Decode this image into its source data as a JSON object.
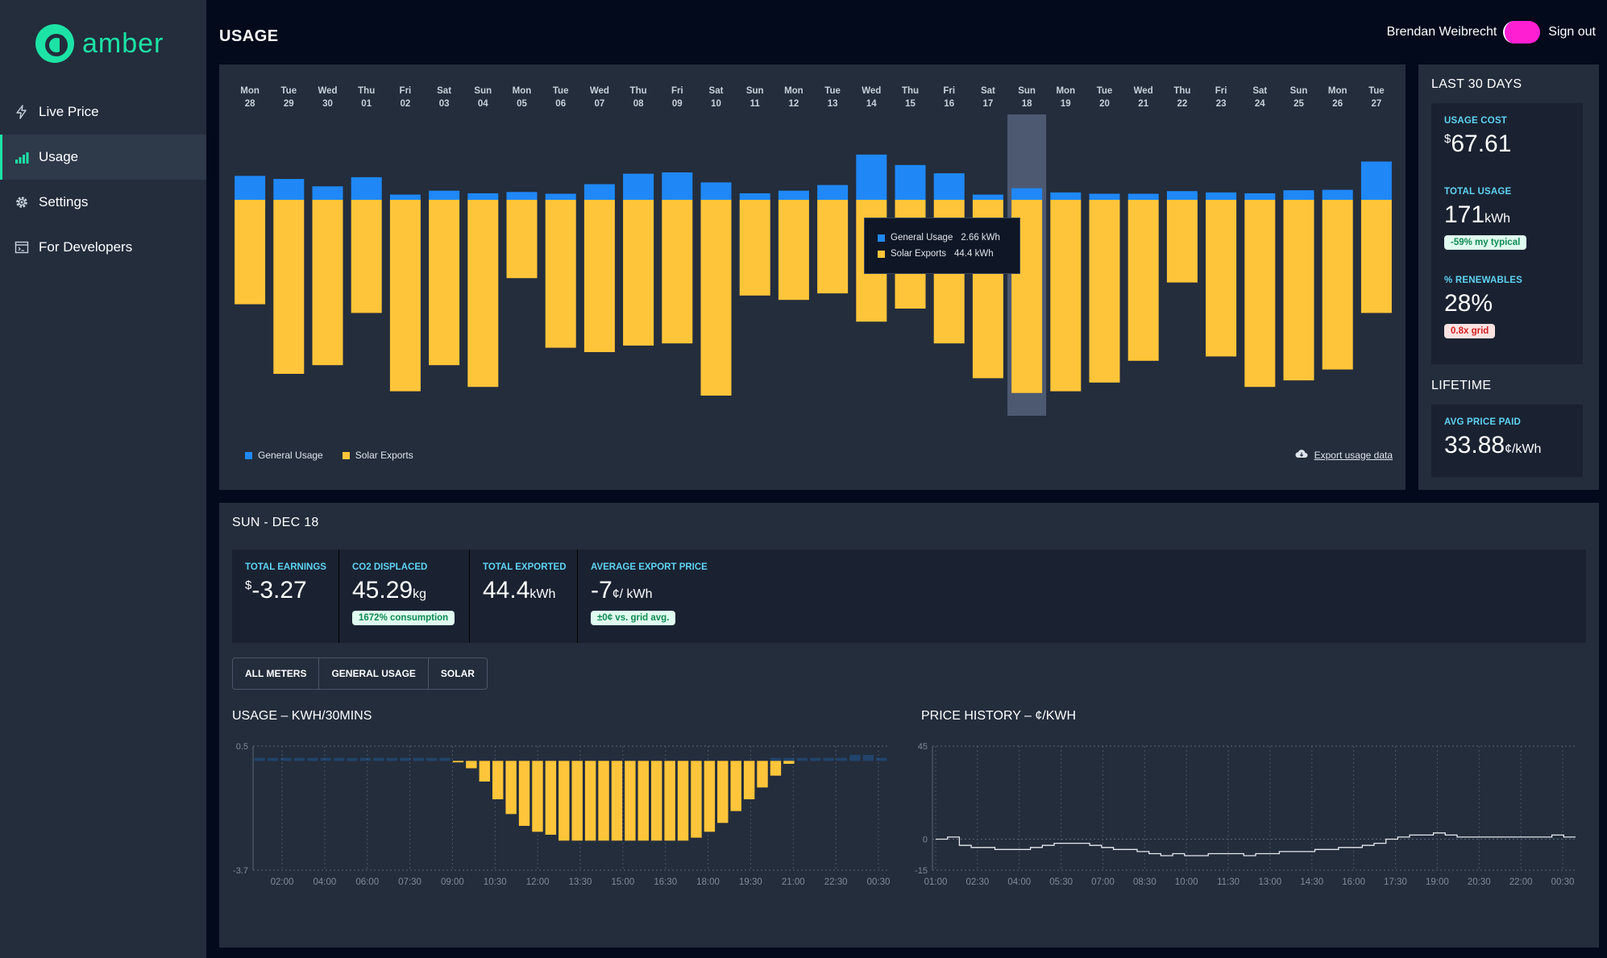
{
  "app": {
    "name": "amber"
  },
  "sidebar": {
    "items": [
      {
        "label": "Live Price",
        "icon": "lightning-icon"
      },
      {
        "label": "Usage",
        "icon": "bar-chart-icon",
        "active": true
      },
      {
        "label": "Settings",
        "icon": "gear-icon"
      },
      {
        "label": "For Developers",
        "icon": "code-window-icon"
      }
    ]
  },
  "header": {
    "title": "USAGE",
    "user_name": "Brendan Weibrecht",
    "sign_out": "Sign out"
  },
  "usage_chart": {
    "legend": {
      "general": "General Usage",
      "solar": "Solar Exports"
    },
    "export_link": "Export usage data",
    "tooltip": {
      "general_label": "General Usage",
      "general_value": "2.66 kWh",
      "solar_label": "Solar Exports",
      "solar_value": "44.4 kWh"
    }
  },
  "last30": {
    "heading": "LAST 30 DAYS",
    "usage_cost_label": "USAGE COST",
    "usage_cost_currency": "$",
    "usage_cost_value": "67.61",
    "total_usage_label": "TOTAL USAGE",
    "total_usage_value": "171",
    "total_usage_unit": "kWh",
    "total_usage_badge": "-59% my typical",
    "renewables_label": "% RENEWABLES",
    "renewables_value": "28%",
    "renewables_badge": "0.8x grid"
  },
  "lifetime": {
    "heading": "LIFETIME",
    "avg_price_label": "AVG PRICE PAID",
    "avg_price_value": "33.88",
    "avg_price_unit": "¢/kWh"
  },
  "day": {
    "heading": "SUN - DEC 18",
    "earnings_label": "TOTAL EARNINGS",
    "earnings_currency": "$",
    "earnings_value": "-3.27",
    "co2_label": "CO2 DISPLACED",
    "co2_value": "45.29",
    "co2_unit": "kg",
    "co2_badge": "1672% consumption",
    "exported_label": "TOTAL EXPORTED",
    "exported_value": "44.4",
    "exported_unit": "kWh",
    "export_price_label": "AVERAGE EXPORT PRICE",
    "export_price_value": "-7",
    "export_price_unit": "¢/ kWh",
    "export_price_badge": "±0¢ vs. grid avg."
  },
  "meter_tabs": [
    "ALL METERS",
    "GENERAL USAGE",
    "SOLAR"
  ],
  "colors": {
    "general": "#1f88f6",
    "solar": "#ffc53a",
    "accent": "#1ce3a5",
    "toggle": "#ff1fd3"
  },
  "chart_data": [
    {
      "type": "bar",
      "categories": [
        [
          "Mon",
          "28"
        ],
        [
          "Tue",
          "29"
        ],
        [
          "Wed",
          "30"
        ],
        [
          "Thu",
          "01"
        ],
        [
          "Fri",
          "02"
        ],
        [
          "Sat",
          "03"
        ],
        [
          "Sun",
          "04"
        ],
        [
          "Mon",
          "05"
        ],
        [
          "Tue",
          "06"
        ],
        [
          "Wed",
          "07"
        ],
        [
          "Thu",
          "08"
        ],
        [
          "Fri",
          "09"
        ],
        [
          "Sat",
          "10"
        ],
        [
          "Sun",
          "11"
        ],
        [
          "Mon",
          "12"
        ],
        [
          "Tue",
          "13"
        ],
        [
          "Wed",
          "14"
        ],
        [
          "Thu",
          "15"
        ],
        [
          "Fri",
          "16"
        ],
        [
          "Sat",
          "17"
        ],
        [
          "Sun",
          "18"
        ],
        [
          "Mon",
          "19"
        ],
        [
          "Tue",
          "20"
        ],
        [
          "Wed",
          "21"
        ],
        [
          "Thu",
          "22"
        ],
        [
          "Fri",
          "23"
        ],
        [
          "Sat",
          "24"
        ],
        [
          "Sun",
          "25"
        ],
        [
          "Mon",
          "26"
        ],
        [
          "Tue",
          "27"
        ]
      ],
      "series": [
        {
          "name": "General Usage",
          "values": [
            5.5,
            4.8,
            3.1,
            5.2,
            1.2,
            2.1,
            1.5,
            1.8,
            1.4,
            3.6,
            6.0,
            6.3,
            4.0,
            1.5,
            2.1,
            3.4,
            10.4,
            8.0,
            6.1,
            1.2,
            2.66,
            1.7,
            1.4,
            1.4,
            2.0,
            1.7,
            1.5,
            2.2,
            2.3,
            8.8
          ]
        },
        {
          "name": "Solar Exports",
          "values": [
            -24,
            -40,
            -38,
            -26,
            -44,
            -38,
            -43,
            -18,
            -34,
            -35,
            -33.5,
            -33,
            -45,
            -22,
            -23,
            -21.5,
            -28,
            -25,
            -33,
            -41,
            -44.4,
            -44,
            -42,
            -37,
            -19,
            -36,
            -43,
            -41.5,
            -39,
            -26
          ]
        }
      ],
      "highlight_index": 20
    },
    {
      "type": "bar",
      "title": "USAGE – KWH/30MINS",
      "x_ticks": [
        "02:00",
        "04:00",
        "06:00",
        "07:30",
        "09:00",
        "10:30",
        "12:00",
        "13:30",
        "15:00",
        "16:30",
        "18:00",
        "19:30",
        "21:00",
        "22:30",
        "00:30"
      ],
      "ylim": [
        -3.7,
        0.5
      ],
      "y_ticks": [
        "0.5",
        "-3.7"
      ],
      "x": [
        "00:30",
        "01:00",
        "01:30",
        "02:00",
        "02:30",
        "03:00",
        "03:30",
        "04:00",
        "04:30",
        "05:00",
        "05:30",
        "06:00",
        "06:30",
        "07:00",
        "07:30",
        "08:00",
        "08:30",
        "09:00",
        "09:30",
        "10:00",
        "10:30",
        "11:00",
        "11:30",
        "12:00",
        "12:30",
        "13:00",
        "13:30",
        "14:00",
        "14:30",
        "15:00",
        "15:30",
        "16:00",
        "16:30",
        "17:00",
        "17:30",
        "18:00",
        "18:30",
        "19:00",
        "19:30",
        "20:00",
        "20:30",
        "21:00",
        "21:30",
        "22:00",
        "22:30",
        "23:00",
        "23:30",
        "00:00"
      ],
      "series": [
        {
          "name": "General Usage",
          "values": [
            0.1,
            0.1,
            0.1,
            0.1,
            0.1,
            0.1,
            0.1,
            0.1,
            0.1,
            0.1,
            0.1,
            0.1,
            0.1,
            0.1,
            0.1,
            0,
            0,
            0,
            0,
            0,
            0,
            0,
            0,
            0,
            0,
            0,
            0,
            0,
            0,
            0,
            0,
            0,
            0,
            0,
            0,
            0,
            0,
            0,
            0,
            0.1,
            0.1,
            0.1,
            0.1,
            0.1,
            0.1,
            0.2,
            0.2,
            0.1
          ]
        },
        {
          "name": "Solar Exports",
          "values": [
            0,
            0,
            0,
            0,
            0,
            0,
            0,
            0,
            0,
            0,
            0,
            0,
            0,
            0,
            0,
            -0.05,
            -0.25,
            -0.7,
            -1.3,
            -1.8,
            -2.2,
            -2.4,
            -2.5,
            -2.7,
            -2.7,
            -2.7,
            -2.7,
            -2.7,
            -2.7,
            -2.7,
            -2.7,
            -2.7,
            -2.7,
            -2.6,
            -2.4,
            -2.1,
            -1.7,
            -1.3,
            -0.9,
            -0.5,
            -0.1,
            0,
            0,
            0,
            0,
            0,
            0,
            0
          ]
        }
      ]
    },
    {
      "type": "line",
      "title": "PRICE HISTORY – ¢/KWH",
      "x_ticks": [
        "01:00",
        "02:30",
        "04:00",
        "05:30",
        "07:00",
        "08:30",
        "10:00",
        "11:30",
        "13:00",
        "14:30",
        "16:00",
        "17:30",
        "19:00",
        "20:30",
        "22:00",
        "00:30"
      ],
      "ylim": [
        -15,
        45
      ],
      "y_ticks": [
        "45",
        "0",
        "-15"
      ],
      "values": [
        0,
        1,
        -3,
        -4,
        -4,
        -5,
        -5,
        -5,
        -4,
        -3,
        -2,
        -2,
        -2,
        -3,
        -4,
        -5,
        -5,
        -6,
        -7,
        -8,
        -7,
        -8,
        -8,
        -7,
        -7,
        -7,
        -8,
        -7,
        -7,
        -6,
        -6,
        -6,
        -5,
        -5,
        -4,
        -4,
        -3,
        -2,
        0,
        1,
        2,
        2,
        3,
        2,
        1,
        1,
        1,
        1,
        1,
        1,
        1,
        1,
        2,
        1
      ]
    }
  ]
}
